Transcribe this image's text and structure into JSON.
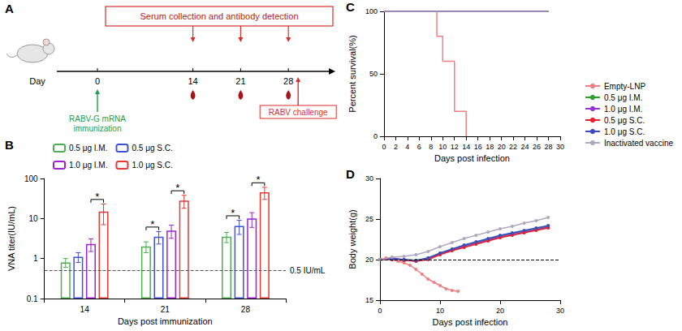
{
  "diagram": {
    "panel": "A",
    "top_box": "Serum collection and antibody detection",
    "axis_label": "Day",
    "timepoints": [
      0,
      14,
      21,
      28
    ],
    "serum_days": [
      14,
      21,
      28
    ],
    "immunization": {
      "day": 0,
      "lines": [
        "RABV-G mRNA",
        "immunization"
      ]
    },
    "challenge": {
      "day": 28,
      "label": "RABV challenge"
    }
  },
  "chart_data": [
    {
      "panel": "B",
      "type": "bar",
      "categories": [
        "14",
        "21",
        "28"
      ],
      "x_label": "Days post immunization",
      "y_label": "VNA titer(IU/mL)",
      "log": "y",
      "ylim": [
        0.1,
        100
      ],
      "yticks": [
        0.1,
        1,
        10,
        100
      ],
      "legend": "top",
      "series": [
        {
          "name": "0.5 μg I.M.",
          "color": "#4caf50",
          "values": [
            0.8,
            2.0,
            3.5
          ],
          "errors": [
            0.2,
            0.6,
            1.0
          ]
        },
        {
          "name": "0.5 μg S.C.",
          "color": "#3f51d8",
          "values": [
            1.1,
            3.5,
            6.5
          ],
          "errors": [
            0.3,
            1.2,
            2.5
          ]
        },
        {
          "name": "1.0 μg I.M.",
          "color": "#a020d0",
          "values": [
            2.3,
            5.0,
            10
          ],
          "errors": [
            0.8,
            1.8,
            4
          ]
        },
        {
          "name": "1.0 μg S.C.",
          "color": "#e53935",
          "values": [
            15,
            28,
            45
          ],
          "errors": [
            8,
            10,
            15
          ]
        }
      ],
      "reference_line": {
        "value": 0.5,
        "label": "0.5 IU/mL"
      },
      "significance": [
        {
          "category": "14",
          "from": "1.0 μg I.M.",
          "to": "1.0 μg S.C.",
          "label": "*"
        },
        {
          "category": "21",
          "from": "0.5 μg I.M.",
          "to": "0.5 μg S.C.",
          "label": "*"
        },
        {
          "category": "21",
          "from": "1.0 μg I.M.",
          "to": "1.0 μg S.C.",
          "label": "*"
        },
        {
          "category": "28",
          "from": "0.5 μg I.M.",
          "to": "0.5 μg S.C.",
          "label": "*"
        },
        {
          "category": "28",
          "from": "1.0 μg I.M.",
          "to": "1.0 μg S.C.",
          "label": "*"
        }
      ]
    },
    {
      "panel": "C",
      "type": "line",
      "line_style": "step",
      "x_label": "Days post infection",
      "y_label": "Percent survival(%)",
      "xlim": [
        0,
        30
      ],
      "xticks": [
        0,
        2,
        4,
        6,
        8,
        10,
        12,
        14,
        16,
        18,
        20,
        22,
        24,
        26,
        28,
        30
      ],
      "ylim": [
        0,
        100
      ],
      "yticks": [
        0,
        50,
        100
      ],
      "legend": "right",
      "series": [
        {
          "name": "Empty-LNP",
          "color": "#f08080",
          "x": [
            0,
            9,
            10,
            12,
            14
          ],
          "values": [
            100,
            80,
            60,
            20,
            0
          ]
        },
        {
          "name": "0.5 μg I.M.",
          "color": "#2ca02c",
          "x": [
            0,
            28
          ],
          "values": [
            100,
            100
          ]
        },
        {
          "name": "1.0 μg I.M.",
          "color": "#9b30d9",
          "x": [
            0,
            28
          ],
          "values": [
            100,
            100
          ]
        },
        {
          "name": "0.5 μg S.C.",
          "color": "#e8202a",
          "x": [
            0,
            28
          ],
          "values": [
            100,
            100
          ]
        },
        {
          "name": "1.0 μg S.C.",
          "color": "#3b4cc0",
          "x": [
            0,
            28
          ],
          "values": [
            100,
            100
          ]
        },
        {
          "name": "Inactivated vaccine",
          "color": "#b0a8c0",
          "x": [
            0,
            28
          ],
          "values": [
            100,
            100
          ]
        }
      ]
    },
    {
      "panel": "D",
      "type": "line",
      "marker": "circle",
      "x_label": "Days post infection",
      "y_label": "Body weight(g)",
      "xlim": [
        0,
        30
      ],
      "xticks": [
        0,
        10,
        20,
        30
      ],
      "ylim": [
        15,
        30
      ],
      "yticks": [
        15,
        20,
        25,
        30
      ],
      "reference_line": {
        "value": 20
      },
      "series": [
        {
          "name": "Empty-LNP",
          "color": "#f08080",
          "x": [
            0,
            1,
            2,
            3,
            4,
            5,
            6,
            7,
            8,
            9,
            10,
            11,
            12,
            13
          ],
          "values": [
            20.0,
            20.2,
            20.0,
            19.8,
            19.6,
            19.3,
            18.8,
            18.2,
            17.6,
            17.2,
            16.8,
            16.4,
            16.2,
            16.1
          ]
        },
        {
          "name": "0.5 μg I.M.",
          "color": "#2ca02c",
          "x": [
            0,
            2,
            4,
            6,
            8,
            10,
            12,
            14,
            16,
            18,
            20,
            22,
            24,
            26,
            28
          ],
          "values": [
            20.0,
            20.1,
            20.0,
            19.9,
            20.2,
            20.8,
            21.3,
            21.7,
            22.1,
            22.5,
            22.9,
            23.2,
            23.5,
            23.8,
            24.1
          ]
        },
        {
          "name": "1.0 μg I.M.",
          "color": "#9b30d9",
          "x": [
            0,
            2,
            4,
            6,
            8,
            10,
            12,
            14,
            16,
            18,
            20,
            22,
            24,
            26,
            28
          ],
          "values": [
            20.0,
            20.2,
            20.0,
            19.8,
            20.1,
            20.7,
            21.2,
            21.6,
            22.0,
            22.4,
            22.8,
            23.1,
            23.4,
            23.7,
            24.0
          ]
        },
        {
          "name": "0.5 μg S.C.",
          "color": "#e8202a",
          "x": [
            0,
            2,
            4,
            6,
            8,
            10,
            12,
            14,
            16,
            18,
            20,
            22,
            24,
            26,
            28
          ],
          "values": [
            20.0,
            20.0,
            19.9,
            19.8,
            20.0,
            20.6,
            21.1,
            21.5,
            21.9,
            22.3,
            22.7,
            23.0,
            23.3,
            23.6,
            23.9
          ]
        },
        {
          "name": "1.0 μg S.C.",
          "color": "#3b4cc0",
          "x": [
            0,
            2,
            4,
            6,
            8,
            10,
            12,
            14,
            16,
            18,
            20,
            22,
            24,
            26,
            28
          ],
          "values": [
            20.0,
            20.1,
            20.0,
            19.9,
            20.2,
            20.8,
            21.3,
            21.8,
            22.2,
            22.6,
            23.0,
            23.3,
            23.6,
            23.9,
            24.2
          ]
        },
        {
          "name": "Inactivated vaccine",
          "color": "#b0a8c0",
          "x": [
            0,
            2,
            4,
            6,
            8,
            10,
            12,
            14,
            16,
            18,
            20,
            22,
            24,
            26,
            28
          ],
          "values": [
            20.0,
            20.3,
            20.4,
            20.6,
            21.0,
            21.6,
            22.1,
            22.6,
            23.0,
            23.4,
            23.8,
            24.1,
            24.5,
            24.8,
            25.2
          ]
        }
      ]
    }
  ]
}
